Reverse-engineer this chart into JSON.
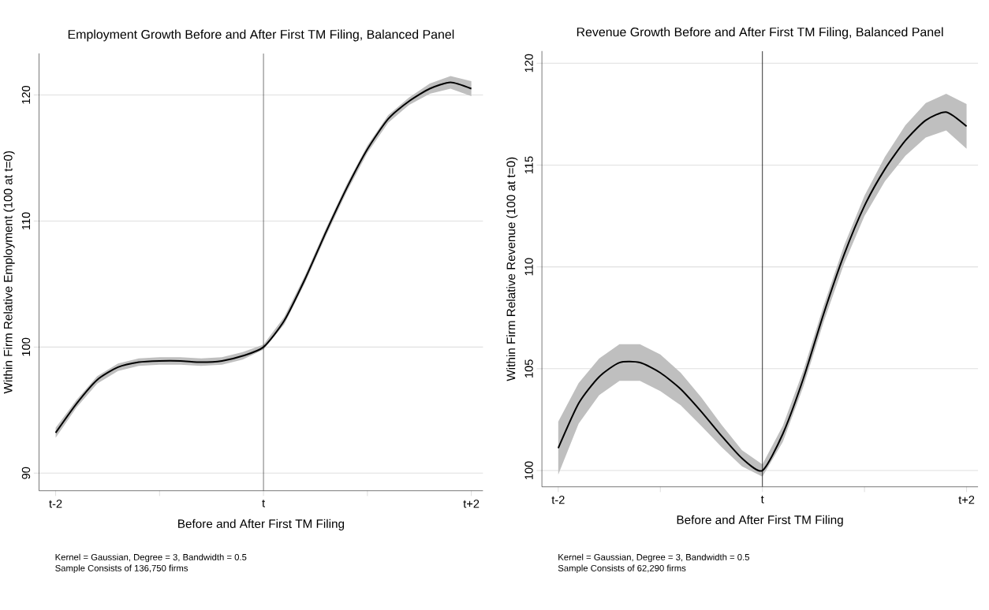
{
  "chart_data": [
    {
      "type": "line",
      "title": "Employment Growth Before and After First TM Filing, Balanced Panel",
      "xlabel": "Before and After First TM Filing",
      "ylabel": "Within Firm Relative Employment (100 at t=0)",
      "annotations": [
        "Kernel = Gaussian, Degree = 3, Bandwidth = 0.5",
        "Sample Consists of 136,750 firms"
      ],
      "categories": [
        "t-2",
        null,
        null,
        null,
        null,
        null,
        null,
        null,
        null,
        null,
        "t",
        null,
        null,
        null,
        null,
        null,
        null,
        null,
        null,
        null,
        "t+2"
      ],
      "series": [
        {
          "color": "#000000",
          "values": [
            93.2,
            95.5,
            97.4,
            98.4,
            98.8,
            98.9,
            98.9,
            98.8,
            98.9,
            99.3,
            100,
            102.1,
            105.4,
            109.1,
            112.6,
            115.7,
            118.1,
            119.5,
            120.5,
            121,
            120.5
          ],
          "lower": [
            92.8,
            95.2,
            97.1,
            98.1,
            98.5,
            98.6,
            98.6,
            98.5,
            98.6,
            99.0,
            99.8,
            101.8,
            105.1,
            108.8,
            112.3,
            115.4,
            117.8,
            119.2,
            120.1,
            120.5,
            119.9
          ],
          "upper": [
            93.6,
            95.8,
            97.7,
            98.7,
            99.1,
            99.2,
            99.2,
            99.1,
            99.2,
            99.6,
            100.2,
            102.4,
            105.7,
            109.4,
            112.9,
            116.0,
            118.4,
            119.8,
            120.9,
            121.5,
            121.1
          ]
        }
      ],
      "ref_lines": [
        {
          "axis": "x",
          "value": "t",
          "color": "#000000"
        }
      ],
      "ylim": [
        88.6,
        123.3
      ],
      "yticks": [
        90,
        100,
        110,
        120
      ],
      "grid": "y"
    },
    {
      "type": "line",
      "title": "Revenue Growth Before and After First TM Filing, Balanced Panel",
      "xlabel": "Before and After First TM Filing",
      "ylabel": "Within Firm Relative Revenue (100 at t=0)",
      "annotations": [
        "Kernel = Gaussian, Degree = 3, Bandwidth = 0.5",
        "Sample Consists of 62,290 firms"
      ],
      "categories": [
        "t-2",
        null,
        null,
        null,
        null,
        null,
        null,
        null,
        null,
        null,
        "t",
        null,
        null,
        null,
        null,
        null,
        null,
        null,
        null,
        null,
        "t+2"
      ],
      "series": [
        {
          "color": "#000000",
          "values": [
            101.1,
            103.3,
            104.6,
            105.3,
            105.3,
            104.8,
            104.0,
            102.9,
            101.7,
            100.6,
            100.0,
            101.8,
            104.5,
            107.7,
            110.6,
            113.0,
            114.8,
            116.2,
            117.2,
            117.6,
            116.9
          ],
          "lower": [
            99.8,
            102.3,
            103.7,
            104.4,
            104.4,
            103.9,
            103.2,
            102.2,
            101.15,
            100.2,
            99.7,
            101.4,
            104.1,
            107.3,
            110.15,
            112.5,
            114.2,
            115.45,
            116.35,
            116.7,
            115.8
          ],
          "upper": [
            102.4,
            104.3,
            105.5,
            106.2,
            106.2,
            105.7,
            104.8,
            103.6,
            102.25,
            101.0,
            100.3,
            102.2,
            104.9,
            108.1,
            111.05,
            113.5,
            115.4,
            116.95,
            118.05,
            118.5,
            118.0
          ]
        }
      ],
      "ref_lines": [
        {
          "axis": "x",
          "value": "t",
          "color": "#000000"
        }
      ],
      "ylim": [
        99.2,
        120.6
      ],
      "yticks": [
        100,
        105,
        110,
        115,
        120
      ],
      "grid": "y"
    }
  ]
}
